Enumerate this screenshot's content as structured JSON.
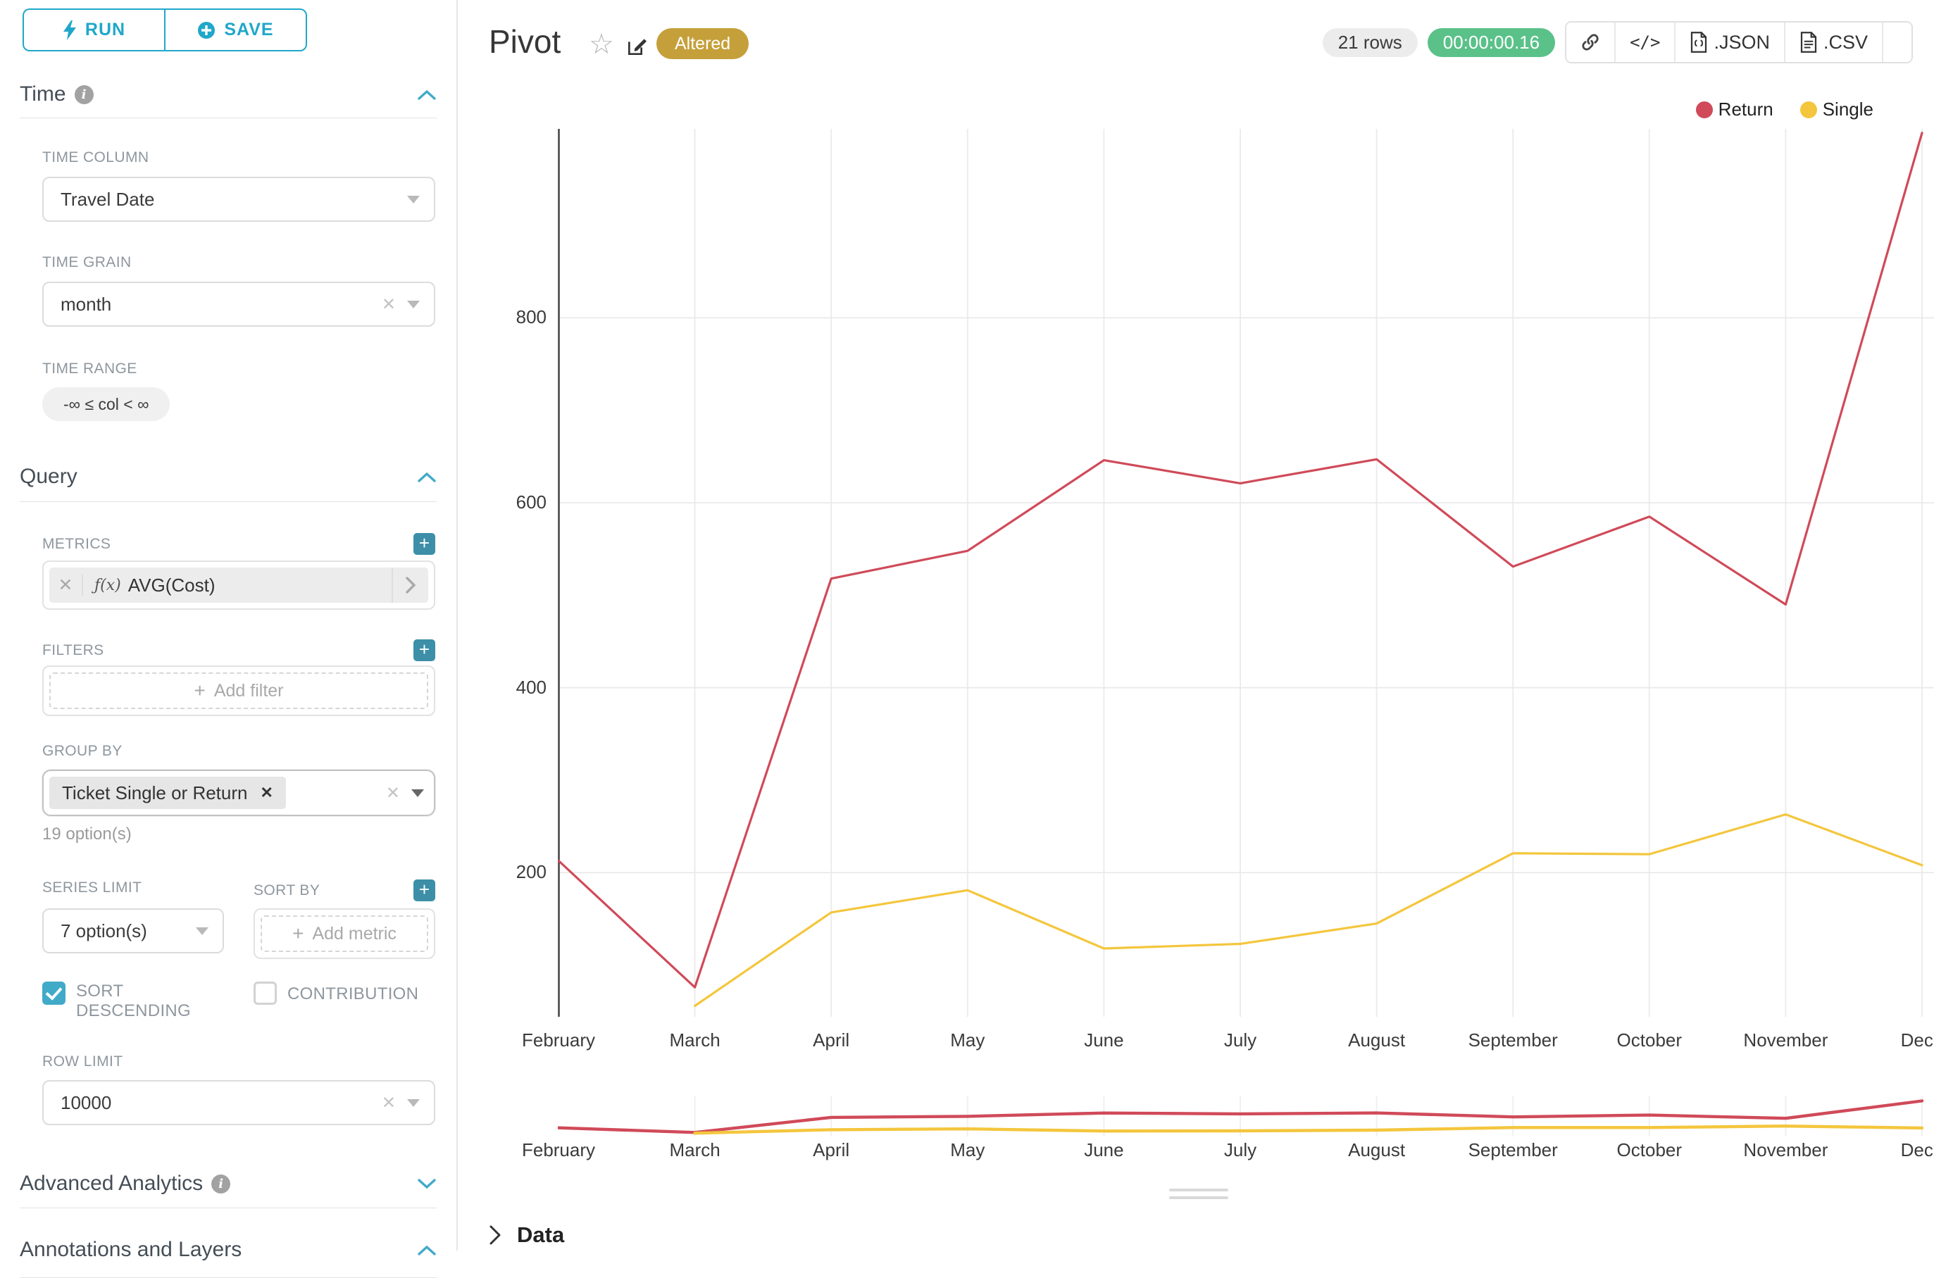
{
  "sidebar": {
    "run_label": "RUN",
    "save_label": "SAVE",
    "time": {
      "heading": "Time",
      "time_column_label": "TIME COLUMN",
      "time_column_value": "Travel Date",
      "time_grain_label": "TIME GRAIN",
      "time_grain_value": "month",
      "time_range_label": "TIME RANGE",
      "time_range_value": "-∞ ≤ col < ∞"
    },
    "query": {
      "heading": "Query",
      "metrics_label": "METRICS",
      "metric_fx": "ƒ(x)",
      "metric_value": "AVG(Cost)",
      "filters_label": "FILTERS",
      "add_filter_placeholder": "Add filter",
      "group_by_label": "GROUP BY",
      "group_by_value": "Ticket Single or Return",
      "group_by_options_hint": "19 option(s)",
      "series_limit_label": "SERIES LIMIT",
      "series_limit_value": "7 option(s)",
      "sort_by_label": "SORT BY",
      "add_metric_placeholder": "Add metric",
      "sort_descending_label": "SORT DESCENDING",
      "contribution_label": "CONTRIBUTION",
      "row_limit_label": "ROW LIMIT",
      "row_limit_value": "10000"
    },
    "advanced_analytics_heading": "Advanced Analytics",
    "annotations_heading": "Annotations and Layers"
  },
  "header": {
    "title": "Pivot",
    "altered_badge": "Altered",
    "rows_badge": "21 rows",
    "timer_badge": "00:00:00.16",
    "json_label": ".JSON",
    "csv_label": ".CSV"
  },
  "data_panel": {
    "label": "Data"
  },
  "colors": {
    "primary_teal": "#20a7c9",
    "altered_gold": "#c5a03a",
    "timer_green": "#5ac189",
    "return_red": "#d04a59",
    "single_yellow": "#f4c63d"
  },
  "chart_data": {
    "type": "line",
    "title": "Pivot",
    "categories": [
      "February",
      "March",
      "April",
      "May",
      "June",
      "July",
      "August",
      "September",
      "October",
      "November",
      "Dece"
    ],
    "series": [
      {
        "name": "Return",
        "color": "#d04a59",
        "values": [
          213,
          76,
          518,
          548,
          646,
          621,
          647,
          531,
          585,
          490,
          1000
        ]
      },
      {
        "name": "Single",
        "color": "#f4c63d",
        "values": [
          null,
          56,
          157,
          181,
          118,
          123,
          145,
          221,
          220,
          263,
          208
        ]
      }
    ],
    "xlabel": "",
    "ylabel": "",
    "yticks": [
      200,
      400,
      600,
      800
    ],
    "ylim": [
      56,
      1004
    ],
    "grid": true,
    "legend_position": "top-right",
    "has_range_brush_minimap": true
  }
}
